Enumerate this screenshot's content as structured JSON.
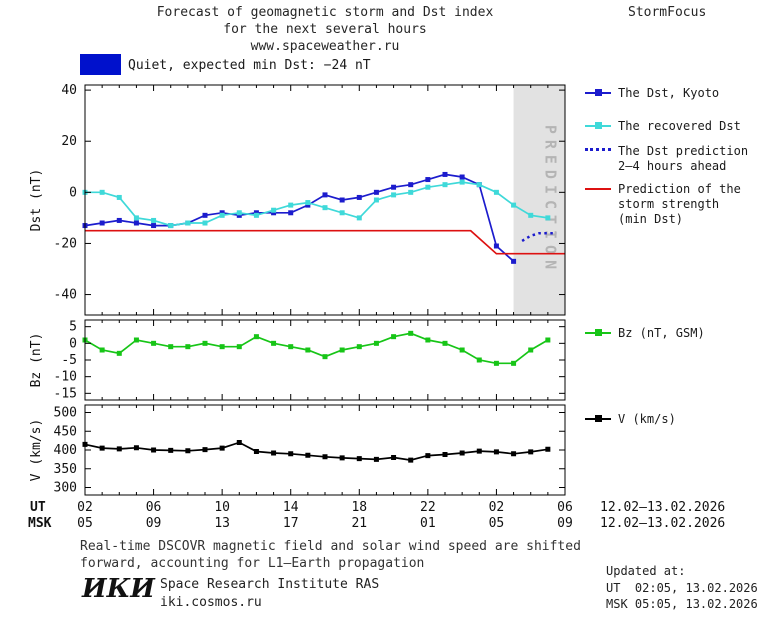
{
  "header": {
    "title_line1": "Forecast of geomagnetic storm and Dst index",
    "title_line2": "for the next several hours",
    "title_line3": "www.spaceweather.ru",
    "brand": "StormFocus"
  },
  "status": {
    "label": "Quiet, expected min Dst: −24 nT",
    "swatch_color": "#0011cc"
  },
  "legend": {
    "dst_kyoto": "The Dst, Kyoto",
    "recovered": "The recovered Dst",
    "prediction_line1": "The Dst prediction",
    "prediction_line2": "2–4 hours ahead",
    "strength_line1": "Prediction of the",
    "strength_line2": "storm strength",
    "strength_line3": "(min Dst)",
    "bz": "Bz (nT, GSM)",
    "v": "V (km/s)"
  },
  "axis": {
    "ut_label": "UT",
    "msk_label": "MSK",
    "ut_dates": "12.02–13.02.2026",
    "msk_dates": "12.02–13.02.2026"
  },
  "footer": {
    "note_line1": "Real-time DSCOVR magnetic field and solar wind speed are shifted",
    "note_line2": "forward, accounting for L1–Earth propagation",
    "logo": "ИКИ",
    "institute": "Space Research Institute RAS",
    "site": "iki.cosmos.ru",
    "updated_label": "Updated at:",
    "updated_ut": "UT  02:05, 13.02.2026",
    "updated_msk": "MSK 05:05, 13.02.2026"
  },
  "chart_data": {
    "type": "line",
    "title": "Forecast of geomagnetic storm and Dst index for the next several hours",
    "x_axis": "time in hours from 02:00 UT 12.02.2026, ticks every 4 h",
    "xlim": [
      0,
      28
    ],
    "x_ticks_hours": [
      0,
      4,
      8,
      12,
      16,
      20,
      24,
      28
    ],
    "x_tick_labels_ut": [
      "02",
      "06",
      "10",
      "14",
      "18",
      "22",
      "02",
      "06"
    ],
    "x_tick_labels_msk": [
      "05",
      "09",
      "13",
      "17",
      "21",
      "01",
      "05",
      "09"
    ],
    "prediction_band": {
      "from": 25,
      "to": 28,
      "label": "PREDICTION",
      "fill": "#e2e2e2",
      "text_color": "#b4b4b4"
    },
    "panels": [
      {
        "ylabel": "Dst (nT)",
        "ylim": [
          -48,
          42
        ],
        "yticks": [
          40,
          20,
          0,
          -20,
          -40
        ],
        "series": [
          {
            "name": "The Dst, Kyoto",
            "color": "#1c1ccd",
            "style": "solid",
            "marker": "square",
            "x": [
              0,
              1,
              2,
              3,
              4,
              5,
              6,
              7,
              8,
              9,
              10,
              11,
              12,
              13,
              14,
              15,
              16,
              17,
              18,
              19,
              20,
              21,
              22,
              23,
              24,
              25
            ],
            "y": [
              -13,
              -12,
              -11,
              -12,
              -13,
              -13,
              -12,
              -9,
              -8,
              -9,
              -8,
              -8,
              -8,
              -5,
              -1,
              -3,
              -2,
              0,
              2,
              3,
              5,
              7,
              6,
              3,
              -21,
              -27
            ]
          },
          {
            "name": "The recovered Dst",
            "color": "#3fd9d9",
            "style": "solid",
            "marker": "square",
            "x": [
              0,
              1,
              2,
              3,
              4,
              5,
              6,
              7,
              8,
              9,
              10,
              11,
              12,
              13,
              14,
              15,
              16,
              17,
              18,
              19,
              20,
              21,
              22,
              23,
              24,
              25,
              26,
              27
            ],
            "y": [
              0,
              0,
              -2,
              -10,
              -11,
              -13,
              -12,
              -12,
              -9,
              -8,
              -9,
              -7,
              -5,
              -4,
              -6,
              -8,
              -10,
              -3,
              -1,
              0,
              2,
              3,
              4,
              3,
              0,
              -5,
              -9,
              -10
            ]
          },
          {
            "name": "The Dst prediction 2–4 hours ahead",
            "color": "#1c1ccd",
            "style": "dotted",
            "marker": "none",
            "x": [
              25.5,
              26,
              26.5,
              27,
              27.5
            ],
            "y": [
              -19,
              -17,
              -16,
              -16,
              -16
            ]
          },
          {
            "name": "Prediction of the storm strength (min Dst)",
            "color": "#dd1111",
            "style": "solid",
            "marker": "none",
            "x": [
              0,
              22.5,
              24,
              28
            ],
            "y": [
              -15,
              -15,
              -24,
              -24
            ]
          }
        ]
      },
      {
        "ylabel": "Bz (nT)",
        "ylim": [
          -17,
          7
        ],
        "yticks": [
          5,
          0,
          -5,
          -10,
          -15
        ],
        "series": [
          {
            "name": "Bz (nT, GSM)",
            "color": "#17c517",
            "style": "solid",
            "marker": "square",
            "x": [
              0,
              1,
              2,
              3,
              4,
              5,
              6,
              7,
              8,
              9,
              10,
              11,
              12,
              13,
              14,
              15,
              16,
              17,
              18,
              19,
              20,
              21,
              22,
              23,
              24,
              25,
              26,
              27
            ],
            "y": [
              1,
              -2,
              -3,
              1,
              0,
              -1,
              -1,
              0,
              -1,
              -1,
              2,
              0,
              -1,
              -2,
              -4,
              -2,
              -1,
              0,
              2,
              3,
              1,
              0,
              -2,
              -5,
              -6,
              -6,
              -2,
              1
            ]
          }
        ]
      },
      {
        "ylabel": "V (km/s)",
        "ylim": [
          280,
          520
        ],
        "yticks": [
          500,
          450,
          400,
          350,
          300
        ],
        "series": [
          {
            "name": "V (km/s)",
            "color": "#000000",
            "style": "solid",
            "marker": "square",
            "x": [
              0,
              1,
              2,
              3,
              4,
              5,
              6,
              7,
              8,
              9,
              10,
              11,
              12,
              13,
              14,
              15,
              16,
              17,
              18,
              19,
              20,
              21,
              22,
              23,
              24,
              25,
              26,
              27
            ],
            "y": [
              415,
              405,
              403,
              406,
              400,
              399,
              398,
              401,
              405,
              420,
              396,
              392,
              390,
              386,
              382,
              379,
              377,
              375,
              380,
              373,
              385,
              388,
              392,
              397,
              395,
              390,
              395,
              402
            ]
          }
        ]
      }
    ]
  }
}
